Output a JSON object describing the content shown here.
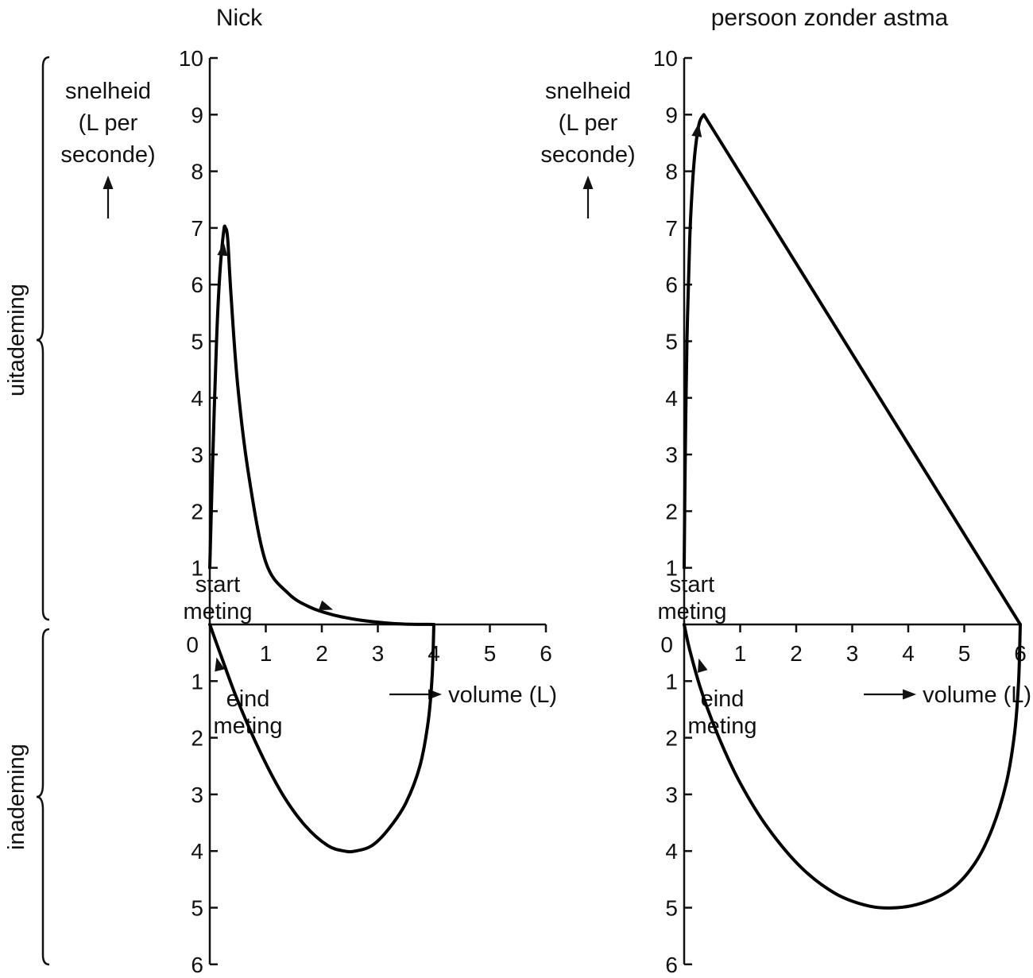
{
  "chart_data": [
    {
      "type": "line",
      "title": "Nick",
      "ylabel": "snelheid (L per seconde)",
      "ylabel_lines": [
        "snelheid",
        "(L per",
        "seconde)"
      ],
      "xlabel": "volume (L)",
      "y_upper_ticks": [
        "0",
        "1",
        "2",
        "3",
        "4",
        "5",
        "6",
        "7",
        "8",
        "9",
        "10"
      ],
      "y_lower_ticks": [
        "1",
        "2",
        "3",
        "4",
        "5",
        "6"
      ],
      "x_ticks": [
        "1",
        "2",
        "3",
        "4",
        "5",
        "6"
      ],
      "xlim": [
        0,
        6
      ],
      "ylim_uitademing": [
        0,
        10
      ],
      "ylim_inademing": [
        0,
        6
      ],
      "start_label": [
        "start",
        "meting"
      ],
      "end_label": [
        "eind",
        "meting"
      ],
      "series": [
        {
          "name": "uitademing",
          "x": [
            0,
            0.05,
            0.12,
            0.18,
            0.25,
            0.28,
            0.32,
            0.38,
            0.5,
            0.7,
            1.0,
            1.4,
            1.8,
            2.2,
            2.6,
            3.0,
            3.4,
            4.0
          ],
          "y": [
            1.0,
            2.8,
            5.0,
            6.2,
            6.95,
            7.0,
            6.8,
            5.8,
            4.2,
            2.6,
            1.1,
            0.55,
            0.3,
            0.17,
            0.09,
            0.04,
            0.01,
            0.0
          ]
        },
        {
          "name": "inademing",
          "x": [
            4.0,
            3.97,
            3.9,
            3.75,
            3.5,
            3.2,
            2.9,
            2.6,
            2.4,
            2.1,
            1.7,
            1.3,
            0.9,
            0.5,
            0.2,
            0.0
          ],
          "y": [
            0.0,
            -0.9,
            -1.7,
            -2.5,
            -3.15,
            -3.6,
            -3.9,
            -4.0,
            -4.0,
            -3.9,
            -3.55,
            -3.0,
            -2.25,
            -1.35,
            -0.55,
            0.0
          ]
        }
      ]
    },
    {
      "type": "line",
      "title": "persoon zonder astma",
      "ylabel": "snelheid (L per seconde)",
      "ylabel_lines": [
        "snelheid",
        "(L per",
        "seconde)"
      ],
      "xlabel": "volume (L)",
      "y_upper_ticks": [
        "0",
        "1",
        "2",
        "3",
        "4",
        "5",
        "6",
        "7",
        "8",
        "9",
        "10"
      ],
      "y_lower_ticks": [
        "1",
        "2",
        "3",
        "4",
        "5",
        "6"
      ],
      "x_ticks": [
        "1",
        "2",
        "3",
        "4",
        "5",
        "6"
      ],
      "xlim": [
        0,
        6
      ],
      "ylim_uitademing": [
        0,
        10
      ],
      "ylim_inademing": [
        0,
        6
      ],
      "start_label": [
        "start",
        "meting"
      ],
      "end_label": [
        "eind",
        "meting"
      ],
      "series": [
        {
          "name": "uitademing",
          "x": [
            0,
            0.02,
            0.05,
            0.1,
            0.15,
            0.2,
            0.27,
            0.35,
            6.0
          ],
          "y": [
            1.0,
            3.0,
            5.0,
            6.8,
            7.8,
            8.4,
            8.85,
            9.0,
            0.0
          ]
        },
        {
          "name": "inademing",
          "x": [
            6.0,
            5.97,
            5.9,
            5.75,
            5.5,
            5.2,
            4.8,
            4.3,
            3.8,
            3.3,
            2.7,
            2.1,
            1.5,
            1.0,
            0.6,
            0.3,
            0.1,
            0.0
          ],
          "y": [
            0.0,
            -1.0,
            -1.9,
            -2.8,
            -3.6,
            -4.2,
            -4.65,
            -4.9,
            -5.0,
            -4.97,
            -4.75,
            -4.3,
            -3.6,
            -2.8,
            -1.95,
            -1.15,
            -0.45,
            0.0
          ]
        }
      ]
    }
  ],
  "side_labels": {
    "upper": "uitademing",
    "lower": "inademing"
  }
}
